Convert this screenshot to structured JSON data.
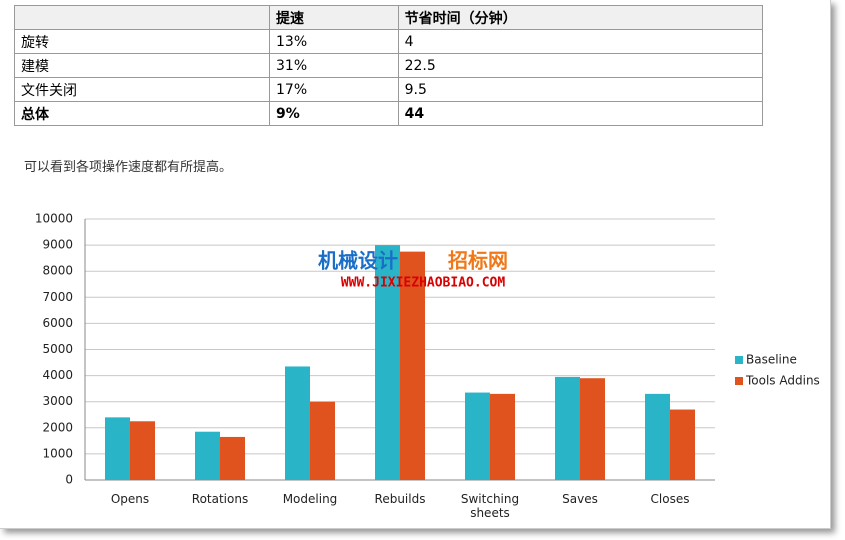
{
  "table": {
    "header": [
      "提速",
      "节省时间（分钟）"
    ],
    "rows": [
      [
        "旋转",
        "13%",
        "4"
      ],
      [
        "建模",
        "31%",
        "22.5"
      ],
      [
        "文件关闭",
        "17%",
        "9.5"
      ],
      [
        "总体",
        "9%",
        "44"
      ]
    ]
  },
  "paragraph": "可以看到各项操作速度都有所提高。",
  "watermark": {
    "title": [
      "机械设计",
      "招标网"
    ],
    "url": "WWW.JIXIEZHAOBIAO.COM"
  },
  "chart_data": {
    "type": "bar",
    "categories": [
      "Opens",
      "Rotations",
      "Modeling",
      "Rebuilds",
      "Switching sheets",
      "Saves",
      "Closes"
    ],
    "series": [
      {
        "name": "Baseline",
        "color": "#2ab4c8",
        "values": [
          2400,
          1850,
          4350,
          9000,
          3350,
          3950,
          3300
        ]
      },
      {
        "name": "Tools Addins",
        "color": "#e0531f",
        "values": [
          2250,
          1650,
          3000,
          8750,
          3300,
          3900,
          2700
        ]
      }
    ],
    "ylim": [
      0,
      10000
    ],
    "yticks": [
      0,
      1000,
      2000,
      3000,
      4000,
      5000,
      6000,
      7000,
      8000,
      9000,
      10000
    ],
    "grid": true,
    "legend": "right"
  }
}
